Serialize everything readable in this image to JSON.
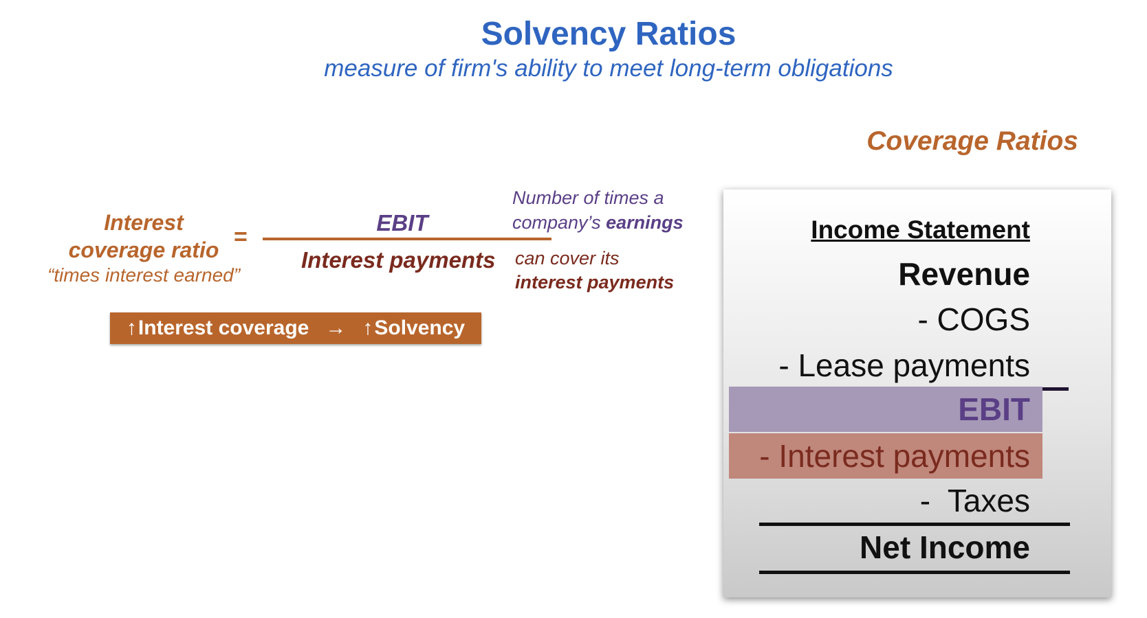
{
  "header": {
    "title": "Solvency Ratios",
    "subtitle": "measure of firm's ability to meet long-term obligations",
    "coverage_heading": "Coverage Ratios"
  },
  "formula": {
    "ratio_name_line1": "Interest",
    "ratio_name_line2": "coverage ratio",
    "ratio_alias": "“times interest earned”",
    "equals": "=",
    "numerator": "EBIT",
    "denominator": "Interest payments"
  },
  "explanation": {
    "line1": "Number of times a",
    "line2_prefix": "company’s ",
    "line2_emphasis": "earnings",
    "line3": "can cover its",
    "line4": "interest payments"
  },
  "implication": {
    "left_arrow": "↑",
    "left_text": "Interest coverage",
    "middle_arrow": "→",
    "right_arrow": "↑",
    "right_text": "Solvency"
  },
  "income_statement": {
    "title": "Income Statement",
    "rows": {
      "revenue": "Revenue",
      "cogs": "- COGS",
      "lease": "- Lease payments",
      "ebit": "EBIT",
      "interest": "- Interest payments",
      "taxes": "-  Taxes",
      "net_income": "Net Income"
    }
  },
  "colors": {
    "title_blue": "#2f65c0",
    "accent_orange": "#b8652c",
    "ebit_purple": "#5a3f86",
    "interest_red": "#7a2a1e"
  }
}
